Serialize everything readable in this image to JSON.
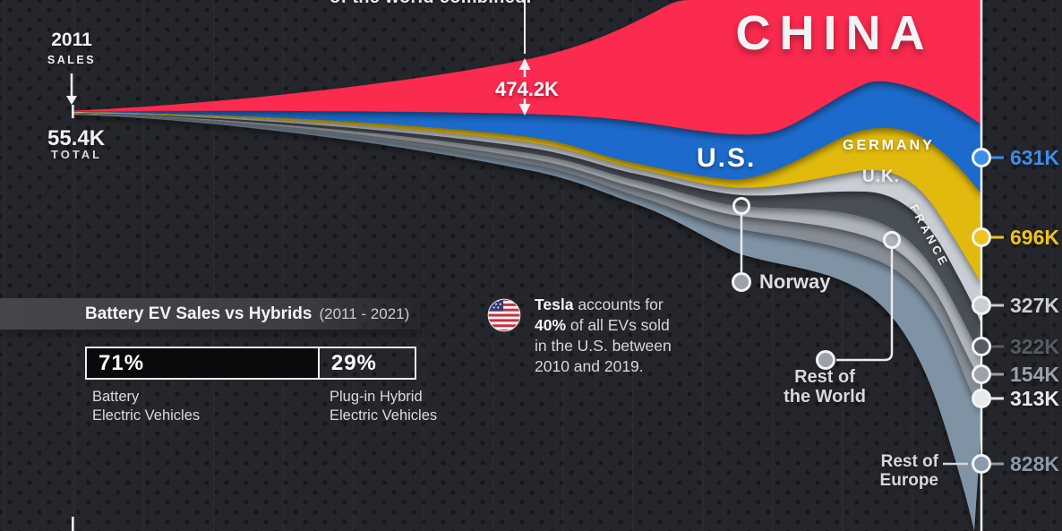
{
  "top_note": "of the world combined.",
  "chart_data": {
    "type": "streamgraph",
    "title_country_big": "CHINA",
    "period": [
      "2011",
      "2021"
    ],
    "start_annotation": {
      "year": "2011",
      "word": "SALES",
      "total_value": "55.4K",
      "total_word": "TOTAL"
    },
    "china_band_annotation": "474.2K",
    "legend_position": "in-chart labels + right edge markers",
    "grid": false,
    "series": [
      {
        "name": "China",
        "label": "CHINA",
        "color": "#FB2B50",
        "end_value": "",
        "value_color": "#FB2B50"
      },
      {
        "name": "United States",
        "label": "U.S.",
        "color": "#1F6BCB",
        "end_value": "631K",
        "value_color": "#3D8EE8"
      },
      {
        "name": "Germany",
        "label": "GERMANY",
        "color": "#E2BA10",
        "end_value": "696K",
        "value_color": "#EFC31C"
      },
      {
        "name": "United Kingdom",
        "label": "U.K.",
        "color": "#C9CED4",
        "end_value": "327K",
        "value_color": "#C9CED4"
      },
      {
        "name": "France",
        "label": "FRANCE",
        "color": "#4A4F57",
        "end_value": "322K",
        "value_color": "#565C64"
      },
      {
        "name": "Norway",
        "label": "Norway",
        "color": "#ADB3BB",
        "end_value": "154K",
        "value_color": "#9BA2AB"
      },
      {
        "name": "Rest of the World",
        "label_line1": "Rest of",
        "label_line2": "the World",
        "color": "#878D96",
        "end_value": "313K",
        "value_color": "#E6E8EB"
      },
      {
        "name": "Rest of Europe",
        "label_line1": "Rest of",
        "label_line2": "Europe",
        "color": "#8093A5",
        "end_value": "828K",
        "value_color": "#8C99A8"
      }
    ]
  },
  "battery_panel": {
    "title": "Battery EV Sales vs Hybrids",
    "period": "(2011 - 2021)",
    "bev_pct": "71%",
    "phev_pct": "29%",
    "bev_caption_1": "Battery",
    "bev_caption_2": "Electric Vehicles",
    "phev_caption_1": "Plug-in Hybrid",
    "phev_caption_2": "Electric Vehicles"
  },
  "tesla_note": {
    "bold1": "Tesla",
    "rest1": " accounts for",
    "bold2": "40%",
    "rest2": " of all EVs sold",
    "line3": "in the U.S. between",
    "line4": "2010 and 2019."
  },
  "icons": {
    "flag": "us-flag-icon"
  }
}
